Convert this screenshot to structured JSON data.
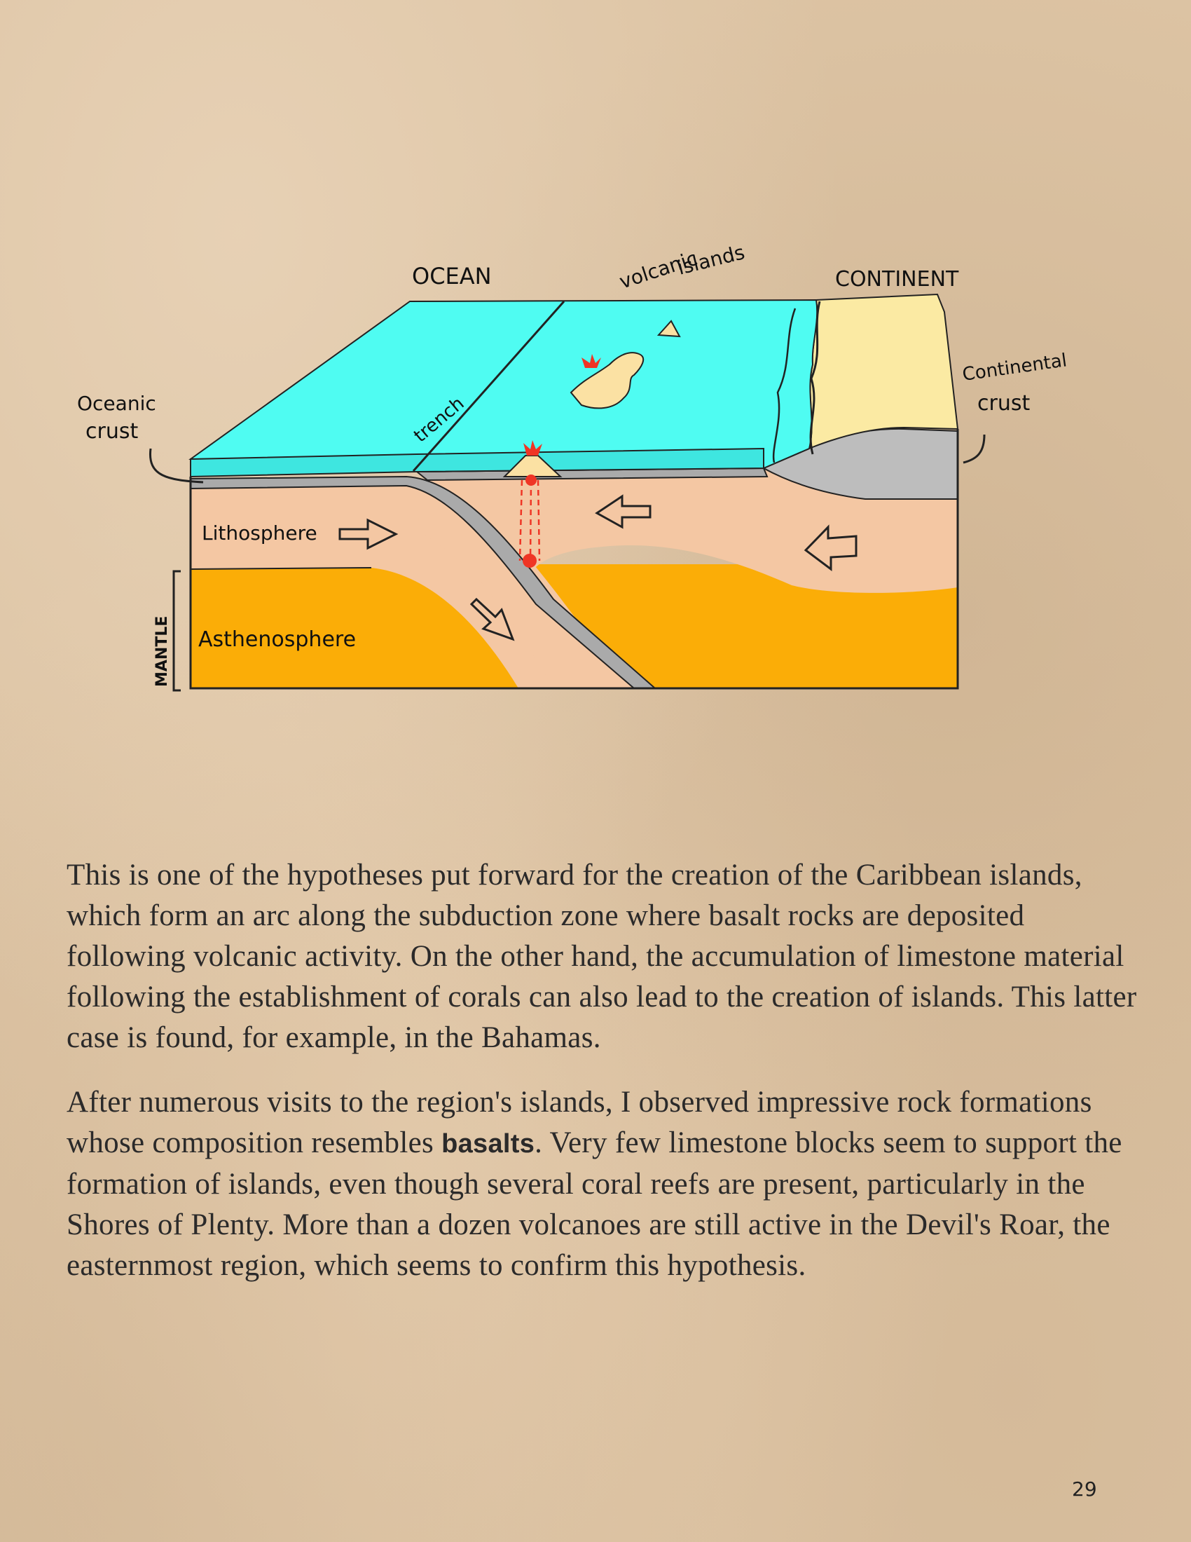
{
  "diagram": {
    "labels": {
      "ocean": "OCEAN",
      "volcanic_islands_line1": "volcanic",
      "volcanic_islands_line2": "islands",
      "continent": "CONTINENT",
      "continental_crust_line1": "Continental",
      "continental_crust_line2": "crust",
      "oceanic_crust_line1": "Oceanic",
      "oceanic_crust_line2": "crust",
      "trench": "trench",
      "lithosphere": "Lithosphere",
      "asthenosphere": "Asthenosphere",
      "mantle": "MANTLE"
    },
    "colors": {
      "ocean": "#4ffcf2",
      "ocean_front": "#3ee6e0",
      "continent": "#fbeaa3",
      "continental_crust": "#bdbdbd",
      "oceanic_crust": "#aaaaaa",
      "lithosphere": "#f4c7a3",
      "asthenosphere": "#fbad07",
      "volcano": "#fbe1a3",
      "magma": "#ef3525"
    }
  },
  "text": {
    "p1": "This is one of the hypotheses put forward for the creation of the Caribbean islands, which form an arc along the subduction zone where basalt rocks are deposited following volcanic activity. On the other hand, the accumulation of limestone material following the establishment of corals can also lead to the creation of islands. This latter case is found, for example, in the Bahamas.",
    "p2_before": "After numerous visits to the region's islands, I observed impressive rock formations whose composition resembles ",
    "p2_bold": "basalts",
    "p2_after": ". Very few limestone blocks seem to support the formation of islands, even though several coral reefs are present, particularly in the Shores of Plenty. More than a dozen volcanoes are still active in the Devil's Roar, the easternmost region, which seems to confirm this hypothesis."
  },
  "page_number": "29"
}
